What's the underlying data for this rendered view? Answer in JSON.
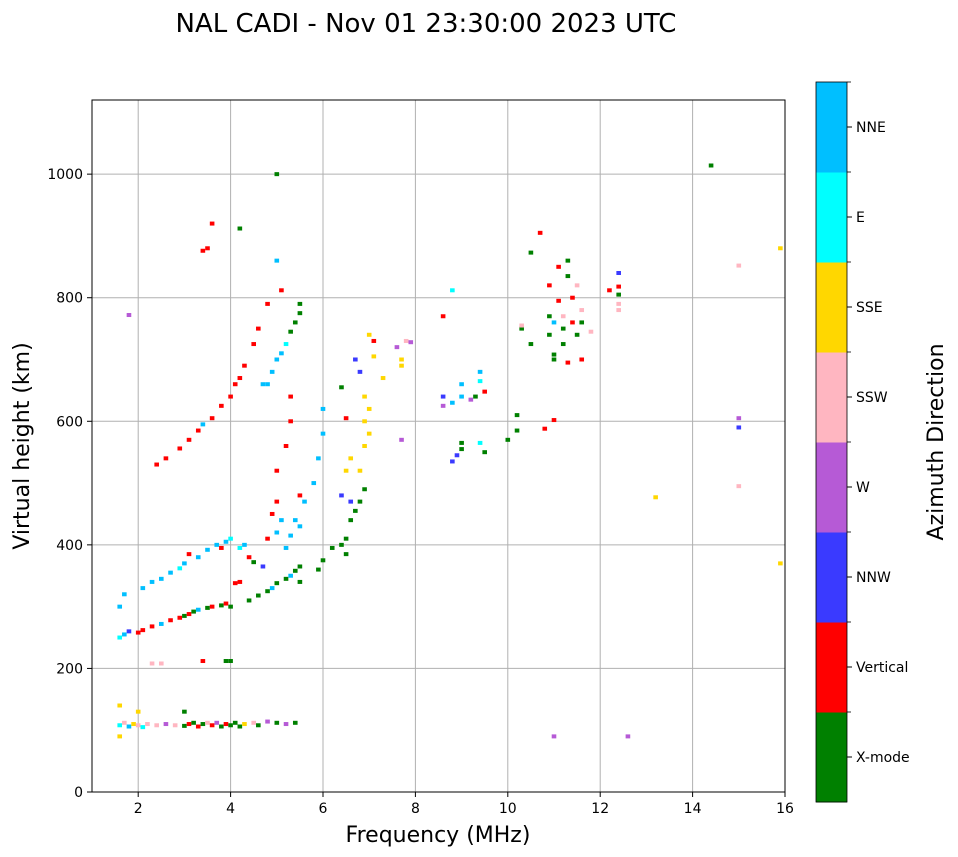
{
  "chart_data": {
    "type": "scatter",
    "title": "NAL CADI - Nov 01 23:30:00 2023 UTC",
    "xlabel": "Frequency (MHz)",
    "ylabel": "Virtual height (km)",
    "xlim": [
      1,
      16
    ],
    "ylim": [
      0,
      1120
    ],
    "xticks": [
      2,
      4,
      6,
      8,
      10,
      12,
      14,
      16
    ],
    "yticks": [
      0,
      200,
      400,
      600,
      800,
      1000
    ],
    "grid": true,
    "colorbar": {
      "label": "Azimuth Direction",
      "categories": [
        "X-mode",
        "Vertical",
        "NNW",
        "W",
        "SSW",
        "SSE",
        "E",
        "NNE"
      ],
      "colors": [
        "#008000",
        "#ff0000",
        "#3a3aff",
        "#b65ad6",
        "#ffb6c1",
        "#ffd700",
        "#00ffff",
        "#00bfff"
      ]
    },
    "point_format": [
      "frequency_MHz",
      "virtual_height_km",
      "direction_index"
    ],
    "points": [
      [
        1.6,
        108,
        6
      ],
      [
        1.7,
        112,
        4
      ],
      [
        1.8,
        106,
        7
      ],
      [
        1.9,
        110,
        5
      ],
      [
        2.0,
        108,
        4
      ],
      [
        2.1,
        105,
        6
      ],
      [
        2.2,
        110,
        4
      ],
      [
        2.4,
        108,
        4
      ],
      [
        2.6,
        110,
        3
      ],
      [
        2.8,
        108,
        4
      ],
      [
        3.0,
        107,
        0
      ],
      [
        3.1,
        110,
        1
      ],
      [
        3.2,
        112,
        0
      ],
      [
        3.3,
        106,
        1
      ],
      [
        3.4,
        110,
        0
      ],
      [
        3.5,
        112,
        4
      ],
      [
        3.6,
        108,
        1
      ],
      [
        3.7,
        112,
        3
      ],
      [
        3.8,
        106,
        0
      ],
      [
        3.9,
        110,
        1
      ],
      [
        4.0,
        108,
        0
      ],
      [
        4.1,
        112,
        0
      ],
      [
        4.2,
        106,
        0
      ],
      [
        4.3,
        110,
        5
      ],
      [
        4.5,
        112,
        4
      ],
      [
        4.6,
        108,
        0
      ],
      [
        4.8,
        114,
        3
      ],
      [
        5.0,
        112,
        0
      ],
      [
        5.2,
        110,
        3
      ],
      [
        5.4,
        112,
        0
      ],
      [
        1.6,
        90,
        5
      ],
      [
        1.6,
        140,
        5
      ],
      [
        2.0,
        130,
        5
      ],
      [
        3.0,
        130,
        0
      ],
      [
        2.3,
        208,
        4
      ],
      [
        2.5,
        208,
        4
      ],
      [
        3.4,
        212,
        1
      ],
      [
        3.9,
        212,
        0
      ],
      [
        4.0,
        212,
        0
      ],
      [
        1.6,
        250,
        6
      ],
      [
        1.7,
        255,
        7
      ],
      [
        1.8,
        260,
        2
      ],
      [
        2.0,
        258,
        1
      ],
      [
        2.1,
        262,
        1
      ],
      [
        2.3,
        268,
        1
      ],
      [
        2.5,
        272,
        7
      ],
      [
        2.7,
        278,
        1
      ],
      [
        2.9,
        282,
        1
      ],
      [
        3.0,
        285,
        0
      ],
      [
        3.1,
        288,
        1
      ],
      [
        3.2,
        292,
        0
      ],
      [
        3.3,
        295,
        7
      ],
      [
        3.5,
        298,
        0
      ],
      [
        3.6,
        300,
        1
      ],
      [
        3.8,
        302,
        0
      ],
      [
        3.9,
        305,
        1
      ],
      [
        4.0,
        300,
        0
      ],
      [
        4.1,
        338,
        1
      ],
      [
        4.2,
        340,
        1
      ],
      [
        4.4,
        310,
        0
      ],
      [
        4.6,
        318,
        0
      ],
      [
        4.8,
        325,
        0
      ],
      [
        4.9,
        330,
        7
      ],
      [
        5.0,
        338,
        0
      ],
      [
        5.2,
        345,
        0
      ],
      [
        5.3,
        350,
        7
      ],
      [
        5.4,
        358,
        0
      ],
      [
        5.5,
        365,
        0
      ],
      [
        5.5,
        340,
        0
      ],
      [
        5.9,
        360,
        0
      ],
      [
        6.0,
        375,
        0
      ],
      [
        6.2,
        395,
        0
      ],
      [
        6.4,
        400,
        0
      ],
      [
        6.5,
        410,
        0
      ],
      [
        6.5,
        385,
        0
      ],
      [
        6.6,
        440,
        0
      ],
      [
        6.7,
        455,
        0
      ],
      [
        6.8,
        470,
        0
      ],
      [
        6.9,
        490,
        0
      ],
      [
        6.4,
        480,
        2
      ],
      [
        6.6,
        470,
        2
      ],
      [
        6.5,
        520,
        5
      ],
      [
        6.6,
        540,
        5
      ],
      [
        1.6,
        300,
        7
      ],
      [
        1.7,
        320,
        7
      ],
      [
        2.1,
        330,
        7
      ],
      [
        2.3,
        340,
        7
      ],
      [
        2.5,
        345,
        7
      ],
      [
        2.7,
        355,
        7
      ],
      [
        2.9,
        362,
        6
      ],
      [
        3.0,
        370,
        7
      ],
      [
        3.1,
        385,
        1
      ],
      [
        3.3,
        380,
        7
      ],
      [
        3.5,
        392,
        7
      ],
      [
        3.7,
        400,
        7
      ],
      [
        3.8,
        395,
        1
      ],
      [
        3.9,
        405,
        7
      ],
      [
        4.0,
        410,
        6
      ],
      [
        4.2,
        395,
        6
      ],
      [
        4.3,
        400,
        7
      ],
      [
        4.4,
        380,
        1
      ],
      [
        4.5,
        372,
        0
      ],
      [
        4.7,
        365,
        2
      ],
      [
        4.8,
        410,
        1
      ],
      [
        4.9,
        450,
        1
      ],
      [
        5.0,
        420,
        7
      ],
      [
        5.1,
        440,
        7
      ],
      [
        5.2,
        395,
        7
      ],
      [
        5.3,
        415,
        7
      ],
      [
        5.4,
        440,
        7
      ],
      [
        5.5,
        430,
        7
      ],
      [
        5.5,
        480,
        1
      ],
      [
        5.6,
        470,
        7
      ],
      [
        5.8,
        500,
        7
      ],
      [
        5.9,
        540,
        7
      ],
      [
        6.0,
        580,
        7
      ],
      [
        6.0,
        620,
        7
      ],
      [
        5.0,
        470,
        1
      ],
      [
        5.0,
        520,
        1
      ],
      [
        5.2,
        560,
        1
      ],
      [
        5.3,
        600,
        1
      ],
      [
        5.3,
        640,
        1
      ],
      [
        2.4,
        530,
        1
      ],
      [
        2.6,
        540,
        1
      ],
      [
        2.9,
        556,
        1
      ],
      [
        3.1,
        570,
        1
      ],
      [
        3.3,
        585,
        1
      ],
      [
        3.4,
        595,
        7
      ],
      [
        3.6,
        605,
        1
      ],
      [
        3.8,
        625,
        1
      ],
      [
        4.0,
        640,
        1
      ],
      [
        4.1,
        660,
        1
      ],
      [
        4.2,
        670,
        1
      ],
      [
        4.3,
        690,
        1
      ],
      [
        4.5,
        725,
        1
      ],
      [
        4.6,
        750,
        1
      ],
      [
        4.7,
        660,
        7
      ],
      [
        4.8,
        660,
        7
      ],
      [
        4.9,
        680,
        7
      ],
      [
        5.0,
        700,
        7
      ],
      [
        5.1,
        710,
        7
      ],
      [
        5.2,
        725,
        6
      ],
      [
        5.3,
        745,
        0
      ],
      [
        5.4,
        760,
        0
      ],
      [
        5.5,
        775,
        0
      ],
      [
        5.5,
        790,
        0
      ],
      [
        4.8,
        790,
        1
      ],
      [
        5.0,
        860,
        7
      ],
      [
        5.1,
        812,
        1
      ],
      [
        4.2,
        912,
        0
      ],
      [
        3.6,
        920,
        1
      ],
      [
        3.5,
        880,
        1
      ],
      [
        3.4,
        876,
        1
      ],
      [
        5.0,
        1000,
        0
      ],
      [
        1.8,
        772,
        3
      ],
      [
        6.4,
        655,
        0
      ],
      [
        6.5,
        605,
        1
      ],
      [
        6.7,
        700,
        2
      ],
      [
        6.8,
        680,
        2
      ],
      [
        6.9,
        640,
        5
      ],
      [
        6.9,
        600,
        5
      ],
      [
        7.0,
        580,
        5
      ],
      [
        7.0,
        620,
        5
      ],
      [
        6.9,
        560,
        5
      ],
      [
        6.8,
        520,
        5
      ],
      [
        7.0,
        740,
        5
      ],
      [
        7.1,
        730,
        1
      ],
      [
        7.1,
        705,
        5
      ],
      [
        7.3,
        670,
        5
      ],
      [
        7.6,
        720,
        3
      ],
      [
        7.7,
        690,
        5
      ],
      [
        7.7,
        700,
        5
      ],
      [
        7.8,
        730,
        4
      ],
      [
        7.9,
        728,
        3
      ],
      [
        7.7,
        570,
        3
      ],
      [
        8.6,
        770,
        1
      ],
      [
        8.8,
        812,
        6
      ],
      [
        8.6,
        640,
        2
      ],
      [
        8.6,
        625,
        3
      ],
      [
        8.8,
        630,
        7
      ],
      [
        8.8,
        535,
        2
      ],
      [
        8.9,
        545,
        2
      ],
      [
        9.0,
        555,
        0
      ],
      [
        9.0,
        565,
        0
      ],
      [
        9.0,
        640,
        7
      ],
      [
        9.0,
        660,
        7
      ],
      [
        9.2,
        635,
        3
      ],
      [
        9.3,
        640,
        0
      ],
      [
        9.4,
        680,
        7
      ],
      [
        9.4,
        665,
        6
      ],
      [
        9.5,
        648,
        1
      ],
      [
        9.4,
        565,
        6
      ],
      [
        9.5,
        550,
        0
      ],
      [
        10.0,
        570,
        0
      ],
      [
        10.2,
        610,
        0
      ],
      [
        10.2,
        585,
        0
      ],
      [
        10.3,
        750,
        0
      ],
      [
        10.3,
        755,
        4
      ],
      [
        10.5,
        725,
        0
      ],
      [
        10.5,
        873,
        0
      ],
      [
        10.7,
        905,
        1
      ],
      [
        10.8,
        588,
        1
      ],
      [
        10.9,
        820,
        1
      ],
      [
        10.9,
        770,
        0
      ],
      [
        10.9,
        740,
        0
      ],
      [
        11.0,
        760,
        7
      ],
      [
        11.0,
        700,
        0
      ],
      [
        11.0,
        708,
        0
      ],
      [
        11.0,
        602,
        1
      ],
      [
        11.1,
        850,
        1
      ],
      [
        11.1,
        795,
        1
      ],
      [
        11.2,
        770,
        4
      ],
      [
        11.2,
        750,
        0
      ],
      [
        11.2,
        725,
        0
      ],
      [
        11.3,
        835,
        0
      ],
      [
        11.3,
        860,
        0
      ],
      [
        11.3,
        695,
        1
      ],
      [
        11.4,
        760,
        1
      ],
      [
        11.4,
        800,
        1
      ],
      [
        11.5,
        740,
        0
      ],
      [
        11.5,
        820,
        4
      ],
      [
        11.6,
        760,
        0
      ],
      [
        11.6,
        700,
        1
      ],
      [
        11.6,
        780,
        4
      ],
      [
        11.8,
        745,
        4
      ],
      [
        12.2,
        812,
        1
      ],
      [
        12.4,
        818,
        1
      ],
      [
        12.4,
        840,
        2
      ],
      [
        12.4,
        805,
        0
      ],
      [
        12.4,
        780,
        4
      ],
      [
        12.4,
        790,
        4
      ],
      [
        13.2,
        477,
        5
      ],
      [
        14.4,
        1014,
        0
      ],
      [
        15.0,
        605,
        3
      ],
      [
        15.0,
        590,
        2
      ],
      [
        15.0,
        852,
        4
      ],
      [
        15.0,
        495,
        4
      ],
      [
        15.9,
        880,
        5
      ],
      [
        15.9,
        370,
        5
      ],
      [
        11.0,
        90,
        3
      ],
      [
        12.6,
        90,
        3
      ]
    ]
  }
}
